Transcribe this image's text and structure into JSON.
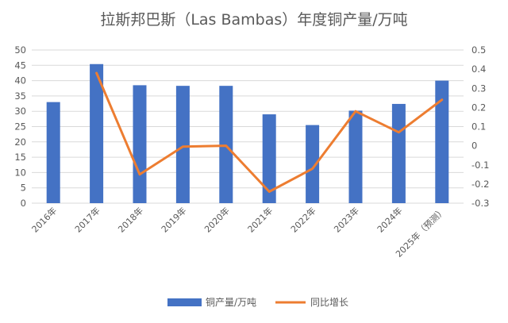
{
  "chart_data": {
    "type": "bar",
    "title": "拉斯邦巴斯（Las Bambas）年度铜产量/万吨",
    "categories": [
      "2016年",
      "2017年",
      "2018年",
      "2019年",
      "2020年",
      "2021年",
      "2022年",
      "2023年",
      "2024年",
      "2025年（预测）"
    ],
    "series": [
      {
        "name": "铜产量/万吨",
        "type": "bar",
        "axis": "left",
        "color": "#4472C4",
        "values": [
          33.0,
          45.4,
          38.5,
          38.3,
          38.3,
          29.0,
          25.5,
          30.2,
          32.4,
          40.0
        ]
      },
      {
        "name": "同比增长",
        "type": "line",
        "axis": "right",
        "color": "#ED7D31",
        "values": [
          null,
          0.38,
          -0.15,
          -0.005,
          0.0,
          -0.24,
          -0.12,
          0.18,
          0.07,
          0.24
        ]
      }
    ],
    "ylim_left": [
      0,
      50
    ],
    "yticks_left": [
      "0",
      "5",
      "10",
      "15",
      "20",
      "25",
      "30",
      "35",
      "40",
      "45",
      "50"
    ],
    "ylim_right": [
      -0.3,
      0.5
    ],
    "yticks_right": [
      "-0.3",
      "-0.2",
      "-0.1",
      "0",
      "0.1",
      "0.2",
      "0.3",
      "0.4",
      "0.5"
    ],
    "grid": true,
    "legend_position": "bottom"
  }
}
